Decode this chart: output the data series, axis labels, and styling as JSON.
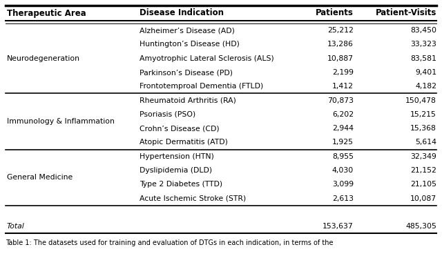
{
  "headers": [
    "Therapeutic Area",
    "Disease Indication",
    "Patients",
    "Patient-Visits"
  ],
  "sections": [
    {
      "area": "Neurodegeneration",
      "diseases": [
        [
          "Alzheimer’s Disease (AD)",
          "25,212",
          "83,450"
        ],
        [
          "Huntington’s Disease (HD)",
          "13,286",
          "33,323"
        ],
        [
          "Amyotrophic Lateral Sclerosis (ALS)",
          "10,887",
          "83,581"
        ],
        [
          "Parkinson’s Disease (PD)",
          "2,199",
          "9,401"
        ],
        [
          "Frontotemproal Dementia (FTLD)",
          "1,412",
          "4,182"
        ]
      ]
    },
    {
      "area": "Immunology & Inflammation",
      "diseases": [
        [
          "Rheumatoid Arthritis (RA)",
          "70,873",
          "150,478"
        ],
        [
          "Psoriasis (PSO)",
          "6,202",
          "15,215"
        ],
        [
          "Crohn’s Disease (CD)",
          "2,944",
          "15,368"
        ],
        [
          "Atopic Dermatitis (ATD)",
          "1,925",
          "5,614"
        ]
      ]
    },
    {
      "area": "General Medicine",
      "diseases": [
        [
          "Hypertension (HTN)",
          "8,955",
          "32,349"
        ],
        [
          "Dyslipidemia (DLD)",
          "4,030",
          "21,152"
        ],
        [
          "Type 2 Diabetes (TTD)",
          "3,099",
          "21,105"
        ],
        [
          "Acute Ischemic Stroke (STR)",
          "2,613",
          "10,087"
        ]
      ]
    }
  ],
  "total": [
    "Total",
    "",
    "153,637",
    "485,305"
  ],
  "caption": "Table 1: The datasets used for training and evaluation of DTGs in each indication, in terms of the",
  "bg_color": "#ffffff",
  "text_color": "#000000",
  "font_size": 7.8,
  "header_font_size": 8.5,
  "caption_font_size": 7.0
}
